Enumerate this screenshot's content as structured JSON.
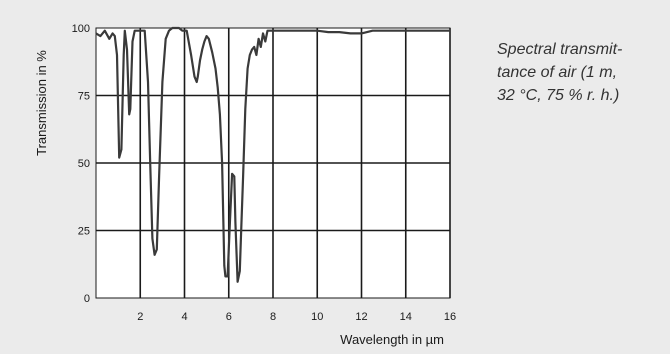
{
  "caption": {
    "lines": [
      "Spectral transmit-",
      "tance of air (1 m,",
      "32 °C, 75 % r. h.)"
    ]
  },
  "chart_data": {
    "type": "line",
    "xlabel": "Wavelength in µm",
    "ylabel": "Transmission in %",
    "xlim": [
      0,
      16
    ],
    "ylim": [
      0,
      100
    ],
    "xticks": [
      2,
      4,
      6,
      8,
      10,
      12,
      14,
      16
    ],
    "yticks": [
      0,
      25,
      50,
      75,
      100
    ],
    "grid": true,
    "colors": {
      "line": "#3a3a3a",
      "grid": "#1a1a1a",
      "plot_bg": "#ffffff",
      "page_bg": "#ebebeb"
    },
    "series": [
      {
        "x": [
          0.0,
          0.2,
          0.4,
          0.6,
          0.75,
          0.85,
          0.95,
          1.05,
          1.15,
          1.25,
          1.3,
          1.4,
          1.5,
          1.55,
          1.65,
          1.75,
          1.85,
          2.0,
          2.2,
          2.35,
          2.45,
          2.55,
          2.65,
          2.75,
          2.85,
          3.0,
          3.15,
          3.3,
          3.45,
          3.6,
          3.75,
          3.9,
          4.1,
          4.3,
          4.45,
          4.55,
          4.6,
          4.7,
          4.8,
          4.9,
          5.0,
          5.1,
          5.25,
          5.4,
          5.5,
          5.6,
          5.7,
          5.8,
          5.85,
          5.95,
          6.05,
          6.15,
          6.25,
          6.3,
          6.4,
          6.5,
          6.55,
          6.65,
          6.75,
          6.85,
          6.95,
          7.05,
          7.15,
          7.25,
          7.35,
          7.45,
          7.55,
          7.65,
          7.75,
          7.85,
          8.0,
          8.5,
          9.0,
          9.5,
          10.0,
          10.5,
          11.0,
          11.5,
          12.0,
          12.5,
          13.0,
          13.5,
          14.0,
          14.5,
          15.0,
          15.5,
          16.0
        ],
        "y": [
          98,
          97,
          99,
          96,
          98,
          97,
          90,
          52,
          55,
          90,
          99,
          92,
          68,
          70,
          95,
          99,
          99,
          99,
          99,
          80,
          50,
          22,
          16,
          18,
          45,
          80,
          96,
          99,
          100,
          100,
          100,
          99,
          99,
          90,
          82,
          80,
          82,
          88,
          92,
          95,
          97,
          96,
          91,
          85,
          78,
          68,
          50,
          12,
          8,
          8,
          28,
          46,
          45,
          28,
          6,
          10,
          22,
          45,
          70,
          85,
          90,
          92,
          93,
          90,
          96,
          93,
          98,
          95,
          99,
          99,
          99,
          99,
          99,
          99,
          99,
          98.5,
          98.5,
          98,
          98,
          99,
          99,
          99,
          99,
          99,
          99,
          99,
          99
        ]
      }
    ]
  }
}
